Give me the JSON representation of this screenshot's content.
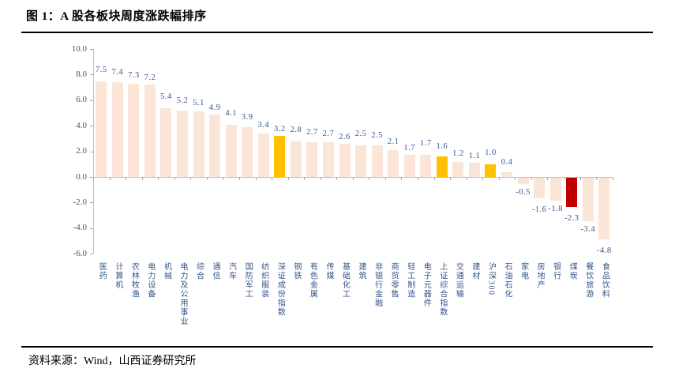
{
  "header": {
    "title": "图 1：A 股各板块周度涨跌幅排序"
  },
  "footer": {
    "source": "资料来源：Wind，山西证券研究所"
  },
  "chart_data": {
    "type": "bar",
    "title": "图 1：A 股各板块周度涨跌幅排序",
    "categories": [
      "医药",
      "计算机",
      "农林牧渔",
      "电力设备",
      "机械",
      "电力及公用事业",
      "综合",
      "通信",
      "汽车",
      "国防军工",
      "纺织服装",
      "深证成份指数",
      "钢铁",
      "有色金属",
      "传媒",
      "基础化工",
      "建筑",
      "非银行金融",
      "商贸零售",
      "轻工制造",
      "电子元器件",
      "上证综合指数",
      "交通运输",
      "建材",
      "沪深300",
      "石油石化",
      "家电",
      "房地产",
      "银行",
      "煤炭",
      "餐饮旅游",
      "食品饮料"
    ],
    "values": [
      7.5,
      7.4,
      7.3,
      7.2,
      5.4,
      5.2,
      5.1,
      4.9,
      4.1,
      3.9,
      3.4,
      3.2,
      2.8,
      2.7,
      2.7,
      2.6,
      2.5,
      2.5,
      2.1,
      1.7,
      1.7,
      1.6,
      1.2,
      1.1,
      1.0,
      0.4,
      -0.5,
      -1.6,
      -1.8,
      -2.3,
      -3.4,
      -4.8
    ],
    "xlabel": "",
    "ylabel": "",
    "ylim": [
      -6.0,
      10.0
    ],
    "ytick_step": 2.0,
    "ytick_labels": [
      "10.0",
      "8.0",
      "6.0",
      "4.0",
      "2.0",
      "0.0",
      "-2.0",
      "-4.0",
      "-6.0"
    ],
    "grid": false,
    "legend": null,
    "colors": {
      "bar_default": "#FBE5D6",
      "bar_index_highlight": "#FFC000",
      "bar_red_highlight": "#C00000",
      "label_text": "#34558B",
      "axis_line": "#BFBFBF"
    },
    "yellow_categories": [
      "深证成份指数",
      "上证综合指数",
      "沪深300"
    ],
    "red_categories": [
      "煤炭"
    ]
  }
}
